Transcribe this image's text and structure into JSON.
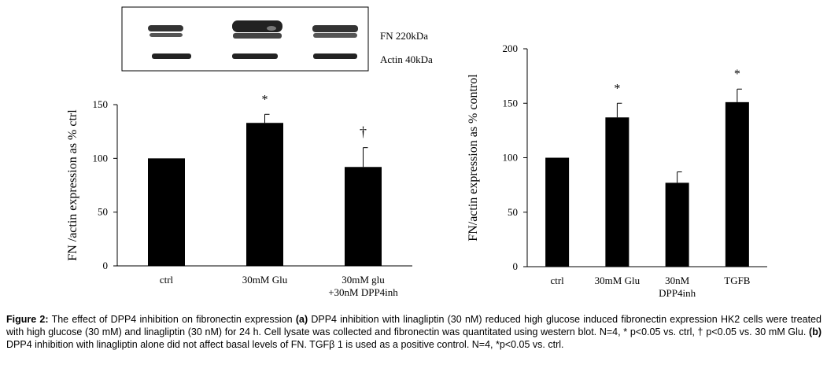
{
  "blot": {
    "fn_label": "FN 220kDa",
    "actin_label": "Actin 40kDa"
  },
  "caption": {
    "figure_label": "Figure 2:",
    "text_1": " The effect of DPP4 inhibition on fibronectin expression ",
    "panel_a": "(a)",
    "text_2": " DPP4 inhibition with linagliptin (30 nM) reduced high glucose induced fibronectin expression HK2 cells were treated with high glucose (30 mM) and linagliptin (30 nM) for 24 h. Cell lysate was collected and fibronectin was quantitated using western blot. N=4, * p<0.05 vs. ctrl, † p<0.05 vs. 30 mM Glu. ",
    "panel_b": "(b)",
    "text_3": " DPP4 inhibition with linagliptin alone did not affect basal levels of FN. TGFβ 1 is used as a positive control. N=4, *p<0.05 vs. ctrl."
  },
  "chart_data": [
    {
      "type": "bar",
      "ylabel": "FN /actin expression  as % ctrl",
      "ylim": [
        0,
        150
      ],
      "yticks": [
        0,
        50,
        100,
        150
      ],
      "grid": false,
      "categories": [
        [
          "ctrl"
        ],
        [
          "30mM Glu"
        ],
        [
          "30mM glu",
          "+30nM DPP4inh"
        ]
      ],
      "values": [
        100,
        133,
        92
      ],
      "errors": [
        0,
        8,
        18
      ],
      "annotations": [
        "",
        "*",
        "†"
      ],
      "color": "#000000"
    },
    {
      "type": "bar",
      "ylabel": "FN/actin expression as % control",
      "ylim": [
        0,
        200
      ],
      "yticks": [
        0,
        50,
        100,
        150,
        200
      ],
      "grid": false,
      "categories": [
        [
          "ctrl"
        ],
        [
          "30mM Glu"
        ],
        [
          "30nM",
          "DPP4inh"
        ],
        [
          "TGFB"
        ]
      ],
      "values": [
        100,
        137,
        77,
        151
      ],
      "errors": [
        0,
        13,
        10,
        12
      ],
      "annotations": [
        "",
        "*",
        "",
        "*"
      ],
      "color": "#000000"
    }
  ]
}
